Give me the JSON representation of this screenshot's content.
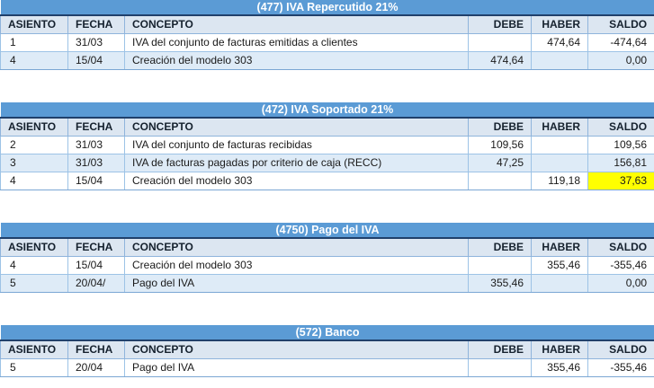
{
  "columns": {
    "asiento": "ASIENTO",
    "fecha": "FECHA",
    "concepto": "CONCEPTO",
    "debe": "DEBE",
    "haber": "HABER",
    "saldo": "SALDO"
  },
  "tables": [
    {
      "account_code": "477",
      "title": "(477) IVA Repercutido 21%",
      "rows": [
        {
          "asiento": "1",
          "fecha": "31/03",
          "concepto": "IVA del conjunto de facturas emitidas a clientes",
          "debe": "",
          "haber": "474,64",
          "saldo": "-474,64"
        },
        {
          "asiento": "4",
          "fecha": "15/04",
          "concepto": "Creación del modelo 303",
          "debe": "474,64",
          "haber": "",
          "saldo": "0,00"
        }
      ]
    },
    {
      "account_code": "472",
      "title": "(472) IVA Soportado 21%",
      "rows": [
        {
          "asiento": "2",
          "fecha": "31/03",
          "concepto": "IVA del conjunto de facturas recibidas",
          "debe": "109,56",
          "haber": "",
          "saldo": "109,56"
        },
        {
          "asiento": "3",
          "fecha": "31/03",
          "concepto": "IVA de facturas pagadas por criterio de caja (RECC)",
          "debe": "47,25",
          "haber": "",
          "saldo": "156,81"
        },
        {
          "asiento": "4",
          "fecha": "15/04",
          "concepto": "Creación del modelo 303",
          "debe": "",
          "haber": "119,18",
          "saldo": "37,63",
          "saldo_highlighted": true
        }
      ]
    },
    {
      "account_code": "4750",
      "title": "(4750) Pago del IVA",
      "rows": [
        {
          "asiento": "4",
          "fecha": "15/04",
          "concepto": "Creación del modelo 303",
          "debe": "",
          "haber": "355,46",
          "saldo": "-355,46"
        },
        {
          "asiento": "5",
          "fecha": "20/04/",
          "concepto": "Pago del IVA",
          "debe": "355,46",
          "haber": "",
          "saldo": "0,00"
        }
      ]
    },
    {
      "account_code": "572",
      "title": "(572) Banco",
      "rows": [
        {
          "asiento": "5",
          "fecha": "20/04",
          "concepto": "Pago del IVA",
          "debe": "",
          "haber": "355,46",
          "saldo": "-355,46"
        }
      ]
    }
  ],
  "colors": {
    "title_band_blue": "#5B9BD5",
    "title_text": "#FFFFFF",
    "header_row_bg": "#DCE6F1",
    "zebra_row_bg": "#DEEBF7",
    "grid_line_blue": "#9DC3E6",
    "dark_band_border": "#20406B",
    "highlight_yellow": "#FFFF00"
  }
}
